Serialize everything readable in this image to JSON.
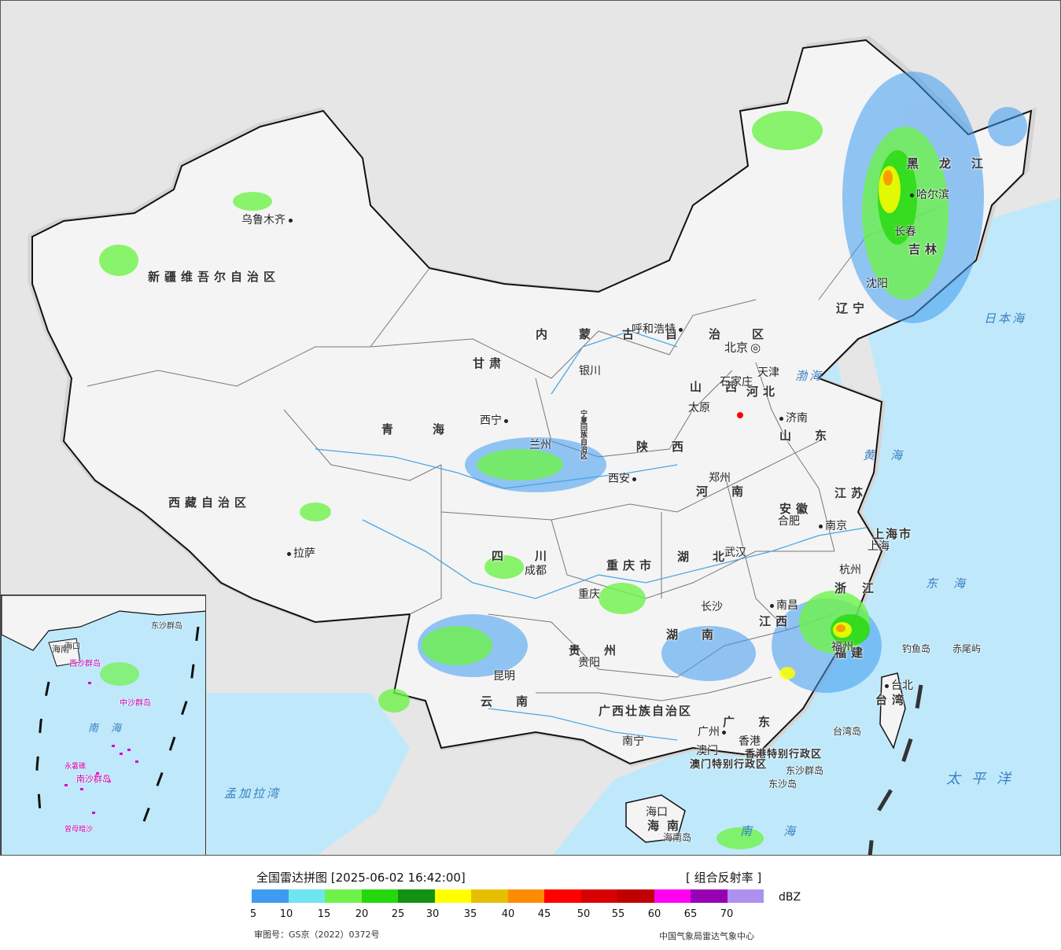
{
  "map": {
    "provinces": [
      {
        "name": "新疆维吾尔自治区"
      },
      {
        "name": "西藏自治区"
      },
      {
        "name": "青海"
      },
      {
        "name": "甘肃"
      },
      {
        "name": "四川"
      },
      {
        "name": "云南"
      },
      {
        "name": "贵州"
      },
      {
        "name": "广西壮族自治区"
      },
      {
        "name": "广东"
      },
      {
        "name": "湖南"
      },
      {
        "name": "湖北"
      },
      {
        "name": "河南"
      },
      {
        "name": "陕西"
      },
      {
        "name": "山西"
      },
      {
        "name": "河北"
      },
      {
        "name": "山东"
      },
      {
        "name": "江苏"
      },
      {
        "name": "安徽"
      },
      {
        "name": "浙江"
      },
      {
        "name": "江西"
      },
      {
        "name": "福建"
      },
      {
        "name": "台湾"
      },
      {
        "name": "海南"
      },
      {
        "name": "内蒙古自治区"
      },
      {
        "name": "辽宁"
      },
      {
        "name": "吉林"
      },
      {
        "name": "黑龙江"
      },
      {
        "name": "重庆市"
      },
      {
        "name": "上海市"
      },
      {
        "name": "香港特别行政区"
      },
      {
        "name": "澳门特别行政区"
      },
      {
        "name": "宁夏回族自治区"
      }
    ],
    "cities": [
      {
        "name": "乌鲁木齐"
      },
      {
        "name": "拉萨"
      },
      {
        "name": "西宁"
      },
      {
        "name": "兰州"
      },
      {
        "name": "银川"
      },
      {
        "name": "呼和浩特"
      },
      {
        "name": "北京"
      },
      {
        "name": "天津"
      },
      {
        "name": "石家庄"
      },
      {
        "name": "太原"
      },
      {
        "name": "济南"
      },
      {
        "name": "郑州"
      },
      {
        "name": "西安"
      },
      {
        "name": "成都"
      },
      {
        "name": "重庆"
      },
      {
        "name": "贵阳"
      },
      {
        "name": "昆明"
      },
      {
        "name": "南宁"
      },
      {
        "name": "广州"
      },
      {
        "name": "澳门"
      },
      {
        "name": "香港"
      },
      {
        "name": "海口"
      },
      {
        "name": "长沙"
      },
      {
        "name": "武汉"
      },
      {
        "name": "南昌"
      },
      {
        "name": "合肥"
      },
      {
        "name": "南京"
      },
      {
        "name": "上海"
      },
      {
        "name": "杭州"
      },
      {
        "name": "福州"
      },
      {
        "name": "台北"
      },
      {
        "name": "沈阳"
      },
      {
        "name": "长春"
      },
      {
        "name": "哈尔滨"
      }
    ],
    "seas": [
      {
        "name": "日本海"
      },
      {
        "name": "渤海"
      },
      {
        "name": "黄海"
      },
      {
        "name": "东海"
      },
      {
        "name": "太平洋"
      },
      {
        "name": "南海"
      },
      {
        "name": "孟加拉湾"
      }
    ],
    "islands": [
      {
        "name": "钓鱼岛"
      },
      {
        "name": "赤尾屿"
      },
      {
        "name": "台湾岛"
      },
      {
        "name": "东沙群岛"
      },
      {
        "name": "东沙岛"
      },
      {
        "name": "海南岛"
      }
    ],
    "inset": {
      "labels": [
        "南海",
        "海南",
        "海口",
        "东沙群岛",
        "永暑礁",
        "南沙群岛",
        "曾母暗沙",
        "中沙群岛",
        "西沙群岛"
      ]
    }
  },
  "legend": {
    "title": "全国雷达拼图 [2025-06-02 16:42:00]",
    "product": "[ 组合反射率 ]",
    "unit": "dBZ",
    "ticks": [
      "5",
      "10",
      "15",
      "20",
      "25",
      "30",
      "35",
      "40",
      "45",
      "50",
      "55",
      "60",
      "65",
      "70"
    ],
    "colors": [
      "#3d9bf0",
      "#6ee5ef",
      "#6ef24a",
      "#25d80e",
      "#129211",
      "#ffff00",
      "#e6c000",
      "#ff8c00",
      "#ff0000",
      "#d80000",
      "#c00000",
      "#ff00f0",
      "#9800b4",
      "#ad90f0"
    ],
    "approval": "审图号：GS京（2022）0372号",
    "source": "中国气象局雷达气象中心"
  }
}
